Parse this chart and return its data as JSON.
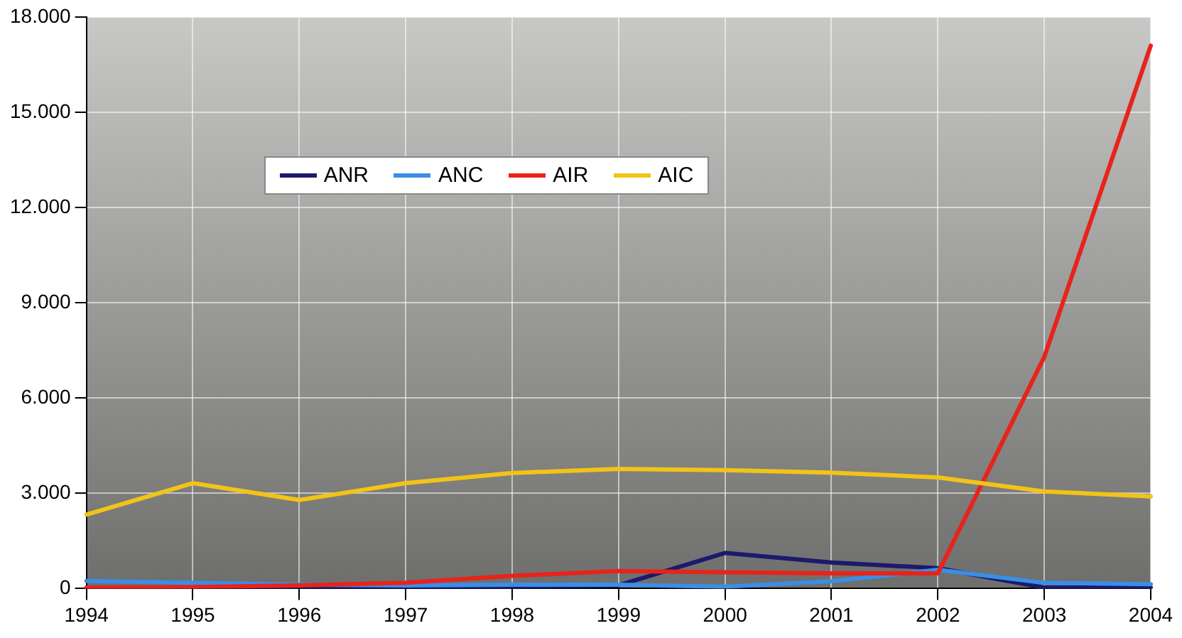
{
  "chart_data": {
    "type": "line",
    "categories": [
      "1994",
      "1995",
      "1996",
      "1997",
      "1998",
      "1999",
      "2000",
      "2001",
      "2002",
      "2003",
      "2004"
    ],
    "series": [
      {
        "name": "ANR",
        "color": "#1c1a6a",
        "values": [
          20,
          20,
          20,
          30,
          50,
          100,
          1120,
          820,
          640,
          30,
          30
        ]
      },
      {
        "name": "ANC",
        "color": "#3a8ee6",
        "values": [
          240,
          180,
          120,
          100,
          120,
          120,
          60,
          230,
          590,
          180,
          140
        ]
      },
      {
        "name": "AIR",
        "color": "#e8231a",
        "values": [
          30,
          50,
          100,
          180,
          400,
          550,
          510,
          480,
          480,
          7300,
          17100
        ]
      },
      {
        "name": "AIC",
        "color": "#f0c419",
        "values": [
          2330,
          3320,
          2790,
          3320,
          3640,
          3770,
          3730,
          3650,
          3500,
          3060,
          2900
        ]
      }
    ],
    "ylim": [
      0,
      18000
    ],
    "yticks": [
      {
        "value": 0,
        "label": "0"
      },
      {
        "value": 3000,
        "label": "3.000"
      },
      {
        "value": 6000,
        "label": "6.000"
      },
      {
        "value": 9000,
        "label": "9.000"
      },
      {
        "value": 12000,
        "label": "12.000"
      },
      {
        "value": 15000,
        "label": "15.000"
      },
      {
        "value": 18000,
        "label": "18.000"
      }
    ],
    "grid": true,
    "legend": "top left",
    "marker": "none",
    "line_style": "solid"
  }
}
